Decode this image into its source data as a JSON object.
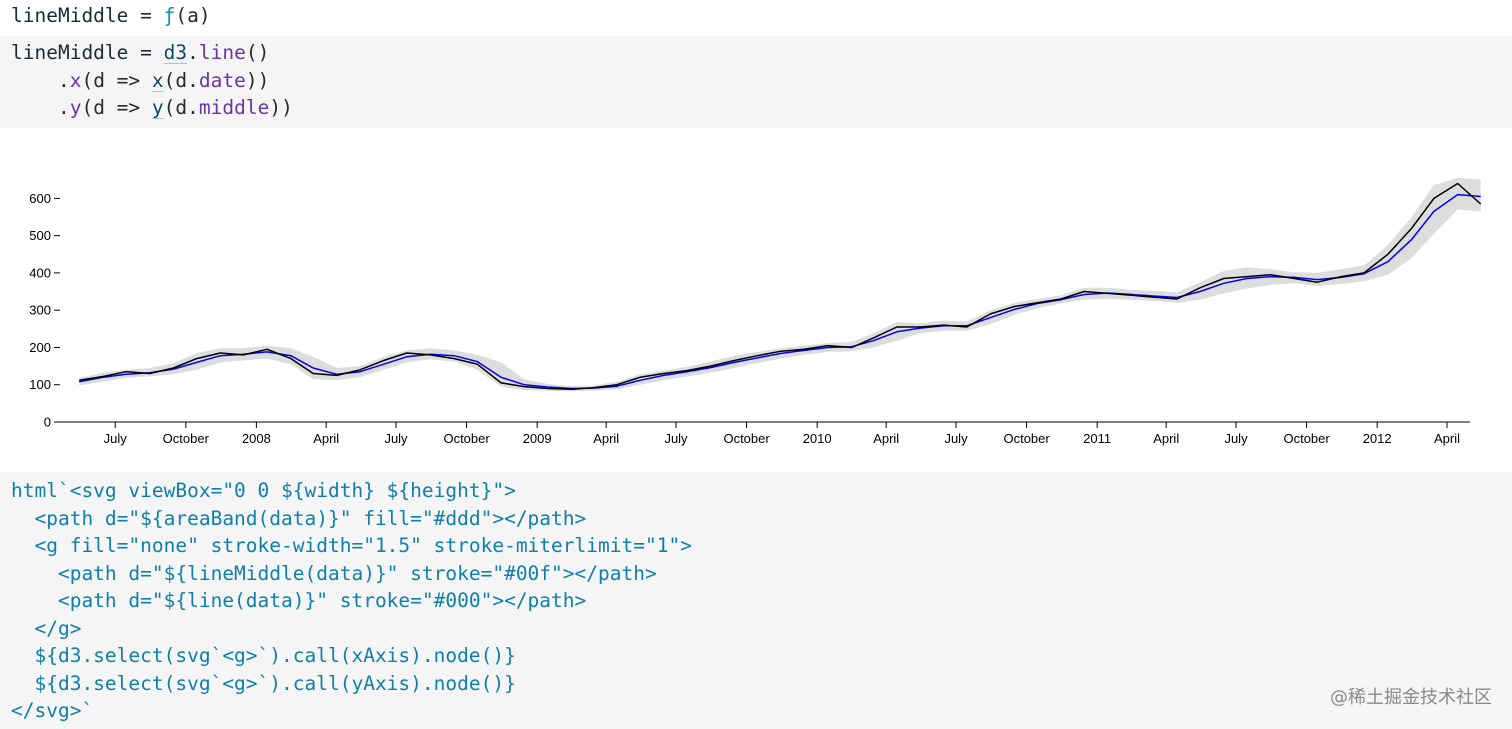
{
  "output_line": {
    "name": "lineMiddle",
    "eq": " = ",
    "fn": "ƒ",
    "args": "(a)"
  },
  "code_cell": {
    "lines": [
      [
        "lineMiddle = ",
        "d3",
        ".",
        "line",
        "()"
      ],
      [
        "    .",
        "x",
        "(d => ",
        "x",
        "(d.",
        "date",
        "))"
      ],
      [
        "    .",
        "y",
        "(d => ",
        "y",
        "(d.",
        "middle",
        "))"
      ]
    ]
  },
  "template_cell": {
    "lines": [
      "html`<svg viewBox=\"0 0 ${width} ${height}\">",
      "  <path d=\"${areaBand(data)}\" fill=\"#ddd\"></path>",
      "  <g fill=\"none\" stroke-width=\"1.5\" stroke-miterlimit=\"1\">",
      "    <path d=\"${lineMiddle(data)}\" stroke=\"#00f\"></path>",
      "    <path d=\"${line(data)}\" stroke=\"#000\"></path>",
      "  </g>",
      "  ${d3.select(svg`<g>`).call(xAxis).node()}",
      "  ${d3.select(svg`<g>`).call(yAxis).node()}",
      "</svg>`"
    ]
  },
  "watermark": "@稀土掘金技术社区",
  "chart_data": {
    "type": "line",
    "x_tick_labels": [
      "July",
      "October",
      "2008",
      "April",
      "July",
      "October",
      "2009",
      "April",
      "July",
      "October",
      "2010",
      "April",
      "July",
      "October",
      "2011",
      "April",
      "July",
      "October",
      "2012",
      "April"
    ],
    "y_ticks": [
      0,
      100,
      200,
      300,
      400,
      500,
      600
    ],
    "xlim": [
      "2007-04-20",
      "2012-05-01"
    ],
    "ylim": [
      0,
      660
    ],
    "colors": {
      "band": "#dddddd",
      "middle": "#0000ff",
      "close": "#000000"
    },
    "x": [
      "2007-05",
      "2007-06",
      "2007-07",
      "2007-08",
      "2007-09",
      "2007-10",
      "2007-11",
      "2007-12",
      "2008-01",
      "2008-02",
      "2008-03",
      "2008-04",
      "2008-05",
      "2008-06",
      "2008-07",
      "2008-08",
      "2008-09",
      "2008-10",
      "2008-11",
      "2008-12",
      "2009-01",
      "2009-02",
      "2009-03",
      "2009-04",
      "2009-05",
      "2009-06",
      "2009-07",
      "2009-08",
      "2009-09",
      "2009-10",
      "2009-11",
      "2009-12",
      "2010-01",
      "2010-02",
      "2010-03",
      "2010-04",
      "2010-05",
      "2010-06",
      "2010-07",
      "2010-08",
      "2010-09",
      "2010-10",
      "2010-11",
      "2010-12",
      "2011-01",
      "2011-02",
      "2011-03",
      "2011-04",
      "2011-05",
      "2011-06",
      "2011-07",
      "2011-08",
      "2011-09",
      "2011-10",
      "2011-11",
      "2011-12",
      "2012-01",
      "2012-02",
      "2012-03",
      "2012-04",
      "2012-05"
    ],
    "series": [
      {
        "values": [
          112,
          122,
          135,
          130,
          145,
          170,
          185,
          180,
          195,
          170,
          130,
          125,
          140,
          165,
          185,
          180,
          170,
          155,
          105,
          95,
          90,
          88,
          92,
          100,
          120,
          130,
          138,
          150,
          165,
          178,
          190,
          195,
          205,
          200,
          225,
          255,
          255,
          260,
          255,
          290,
          310,
          320,
          330,
          350,
          345,
          340,
          335,
          330,
          360,
          385,
          390,
          395,
          385,
          375,
          390,
          400,
          450,
          520,
          600,
          640,
          585
        ]
      },
      {
        "values": [
          108,
          120,
          128,
          132,
          142,
          160,
          178,
          182,
          188,
          178,
          145,
          128,
          135,
          155,
          175,
          182,
          178,
          162,
          120,
          100,
          94,
          90,
          91,
          96,
          112,
          125,
          135,
          146,
          160,
          172,
          184,
          192,
          200,
          202,
          218,
          242,
          252,
          258,
          258,
          280,
          302,
          318,
          328,
          342,
          346,
          342,
          338,
          334,
          350,
          372,
          385,
          390,
          388,
          382,
          388,
          398,
          430,
          490,
          565,
          610,
          605
        ]
      }
    ],
    "band": {
      "upper": [
        118,
        132,
        140,
        145,
        158,
        185,
        198,
        198,
        205,
        198,
        175,
        145,
        150,
        175,
        192,
        198,
        192,
        180,
        160,
        115,
        102,
        96,
        98,
        108,
        128,
        138,
        148,
        162,
        178,
        188,
        198,
        205,
        212,
        215,
        238,
        268,
        265,
        272,
        270,
        300,
        320,
        330,
        340,
        360,
        360,
        355,
        352,
        348,
        375,
        405,
        415,
        410,
        402,
        400,
        410,
        420,
        475,
        550,
        635,
        655,
        650
      ],
      "lower": [
        98,
        108,
        118,
        122,
        128,
        140,
        160,
        165,
        170,
        155,
        115,
        112,
        120,
        140,
        160,
        168,
        162,
        140,
        95,
        85,
        84,
        82,
        84,
        88,
        100,
        112,
        122,
        132,
        145,
        158,
        170,
        180,
        188,
        190,
        200,
        218,
        238,
        245,
        245,
        262,
        288,
        305,
        318,
        328,
        330,
        328,
        325,
        320,
        328,
        345,
        358,
        368,
        372,
        365,
        370,
        378,
        395,
        440,
        505,
        570,
        565
      ]
    }
  }
}
